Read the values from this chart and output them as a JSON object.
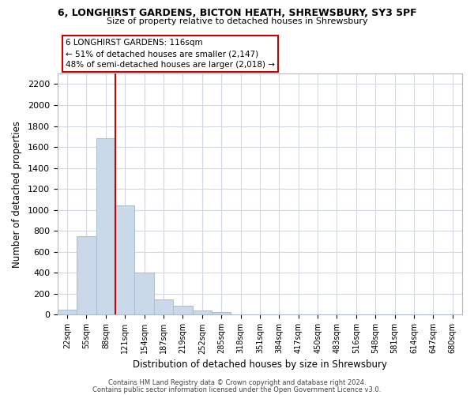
{
  "title_line1": "6, LONGHIRST GARDENS, BICTON HEATH, SHREWSBURY, SY3 5PF",
  "title_line2": "Size of property relative to detached houses in Shrewsbury",
  "xlabel": "Distribution of detached houses by size in Shrewsbury",
  "ylabel": "Number of detached properties",
  "bar_labels": [
    "22sqm",
    "55sqm",
    "88sqm",
    "121sqm",
    "154sqm",
    "187sqm",
    "219sqm",
    "252sqm",
    "285sqm",
    "318sqm",
    "351sqm",
    "384sqm",
    "417sqm",
    "450sqm",
    "483sqm",
    "516sqm",
    "548sqm",
    "581sqm",
    "614sqm",
    "647sqm",
    "680sqm"
  ],
  "bar_values": [
    50,
    750,
    1680,
    1040,
    405,
    148,
    82,
    40,
    25,
    0,
    0,
    0,
    0,
    0,
    0,
    0,
    0,
    0,
    0,
    0,
    0
  ],
  "bar_color": "#c9d9ea",
  "bar_edge_color": "#a8bdd0",
  "vline_color": "#cc0000",
  "vline_x_index": 2,
  "ylim": [
    0,
    2300
  ],
  "yticks": [
    0,
    200,
    400,
    600,
    800,
    1000,
    1200,
    1400,
    1600,
    1800,
    2000,
    2200
  ],
  "annotation_text_line1": "6 LONGHIRST GARDENS: 116sqm",
  "annotation_text_line2": "← 51% of detached houses are smaller (2,147)",
  "annotation_text_line3": "48% of semi-detached houses are larger (2,018) →",
  "footer_line1": "Contains HM Land Registry data © Crown copyright and database right 2024.",
  "footer_line2": "Contains public sector information licensed under the Open Government Licence v3.0.",
  "background_color": "#ffffff",
  "grid_color": "#d0d8e4",
  "figsize": [
    6.0,
    5.0
  ],
  "dpi": 100
}
